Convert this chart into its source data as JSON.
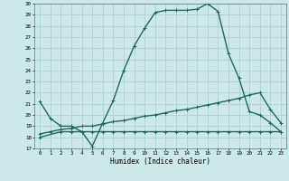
{
  "xlabel": "Humidex (Indice chaleur)",
  "bg_color": "#cce8e8",
  "grid_color": "#aacccc",
  "line_color": "#1a6b5a",
  "xlim": [
    -0.5,
    23.5
  ],
  "ylim": [
    17,
    30
  ],
  "xticks": [
    0,
    1,
    2,
    3,
    4,
    5,
    6,
    7,
    8,
    9,
    10,
    11,
    12,
    13,
    14,
    15,
    16,
    17,
    18,
    19,
    20,
    21,
    22,
    23
  ],
  "yticks": [
    17,
    18,
    19,
    20,
    21,
    22,
    23,
    24,
    25,
    26,
    27,
    28,
    29,
    30
  ],
  "curve1_x": [
    0,
    1,
    2,
    3,
    4,
    5,
    6,
    7,
    8,
    9,
    10,
    11,
    12,
    13,
    14,
    15,
    16,
    17,
    18,
    19,
    20,
    21,
    22,
    23
  ],
  "curve1_y": [
    21.2,
    19.7,
    19.0,
    19.0,
    18.5,
    17.2,
    19.3,
    21.3,
    24.0,
    26.2,
    27.8,
    29.2,
    29.4,
    29.4,
    29.4,
    29.5,
    30.0,
    29.3,
    25.5,
    23.3,
    20.3,
    20.0,
    19.3,
    18.5
  ],
  "curve2_x": [
    0,
    2,
    3,
    4,
    5,
    6,
    7,
    8,
    9,
    10,
    11,
    12,
    13,
    14,
    15,
    16,
    17,
    18,
    19,
    20,
    21,
    22,
    23
  ],
  "curve2_y": [
    18.0,
    18.5,
    18.5,
    18.5,
    18.5,
    18.5,
    18.5,
    18.5,
    18.5,
    18.5,
    18.5,
    18.5,
    18.5,
    18.5,
    18.5,
    18.5,
    18.5,
    18.5,
    18.5,
    18.5,
    18.5,
    18.5,
    18.5
  ],
  "curve3_x": [
    0,
    1,
    2,
    3,
    4,
    5,
    6,
    7,
    8,
    9,
    10,
    11,
    12,
    13,
    14,
    15,
    16,
    17,
    18,
    19,
    20,
    21,
    22,
    23
  ],
  "curve3_y": [
    18.3,
    18.5,
    18.7,
    18.8,
    19.0,
    19.0,
    19.2,
    19.4,
    19.5,
    19.7,
    19.9,
    20.0,
    20.2,
    20.4,
    20.5,
    20.7,
    20.9,
    21.1,
    21.3,
    21.5,
    21.8,
    22.0,
    20.5,
    19.3
  ],
  "linewidth": 1.0,
  "markersize": 3.5
}
